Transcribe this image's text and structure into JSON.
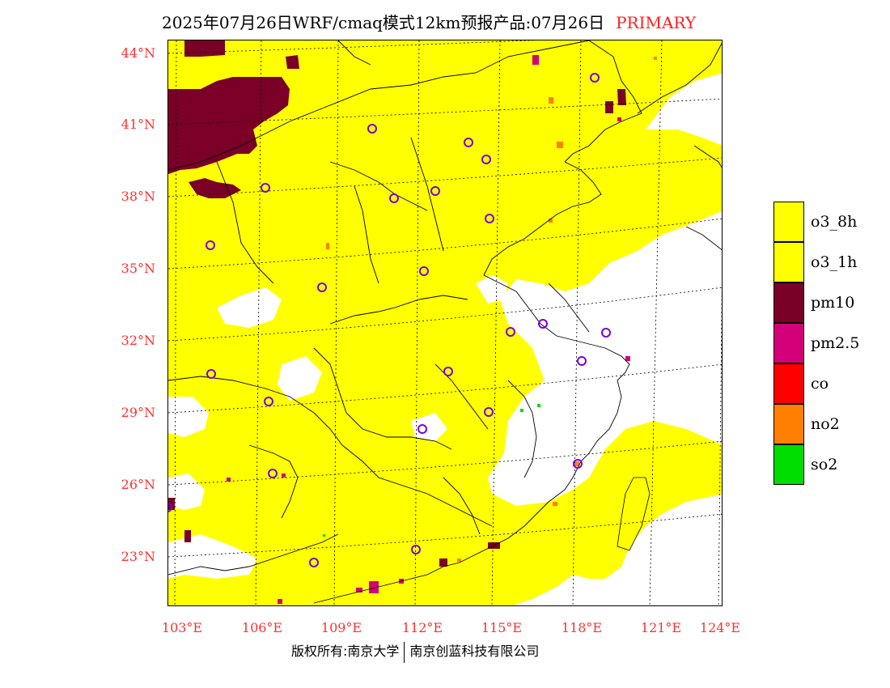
{
  "title": {
    "main": "2025年07月26日WRF/cmaq模式12km预报产品:07月26日",
    "badge": "PRIMARY",
    "badge_color": "#ff2020"
  },
  "map": {
    "base_color": "#ffff00",
    "clean_color": "#ffffff",
    "latitude_labels": [
      "44°N",
      "41°N",
      "38°N",
      "35°N",
      "32°N",
      "29°N",
      "26°N",
      "23°N"
    ],
    "longitude_labels": [
      "103°E",
      "106°E",
      "109°E",
      "112°E",
      "115°E",
      "118°E",
      "121°E",
      "124°E"
    ],
    "label_color": "#ff3030"
  },
  "legend": {
    "items": [
      {
        "label": "o3_8h",
        "color": "#ffff00"
      },
      {
        "label": "o3_1h",
        "color": "#ffff00"
      },
      {
        "label": "pm10",
        "color": "#7a0028"
      },
      {
        "label": "pm2.5",
        "color": "#d4007a"
      },
      {
        "label": "co",
        "color": "#ff0000"
      },
      {
        "label": "no2",
        "color": "#ff8000"
      },
      {
        "label": "so2",
        "color": "#00dd00"
      }
    ]
  },
  "footer": {
    "left": "版权所有:南京大学",
    "right": "南京创蓝科技有限公司"
  }
}
